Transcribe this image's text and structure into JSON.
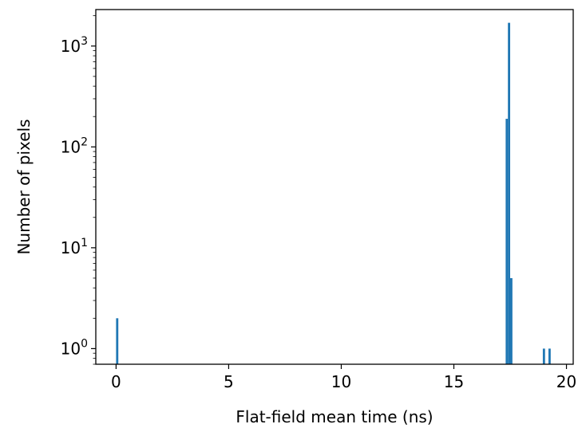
{
  "chart_data": {
    "type": "bar",
    "xlabel": "Flat-field mean time (ns)",
    "ylabel": "Number of pixels",
    "yscale": "log",
    "xlim": [
      -0.9,
      20.3
    ],
    "ylim": [
      0.7,
      2300
    ],
    "bar_color": "#1f77b4",
    "bar_width": 0.1,
    "x_ticks": [
      {
        "value": 0,
        "label": "0"
      },
      {
        "value": 5,
        "label": "5"
      },
      {
        "value": 10,
        "label": "10"
      },
      {
        "value": 15,
        "label": "15"
      },
      {
        "value": 20,
        "label": "20"
      }
    ],
    "y_ticks": [
      {
        "value": 1,
        "base": "10",
        "exp": "0"
      },
      {
        "value": 10,
        "base": "10",
        "exp": "1"
      },
      {
        "value": 100,
        "base": "10",
        "exp": "2"
      },
      {
        "value": 1000,
        "base": "10",
        "exp": "3"
      }
    ],
    "bins": [
      {
        "x": 0.05,
        "count": 2
      },
      {
        "x": 17.35,
        "count": 190
      },
      {
        "x": 17.45,
        "count": 1700
      },
      {
        "x": 17.55,
        "count": 5
      },
      {
        "x": 19.0,
        "count": 1
      },
      {
        "x": 19.25,
        "count": 1
      }
    ],
    "grid": false,
    "legend": "none"
  }
}
